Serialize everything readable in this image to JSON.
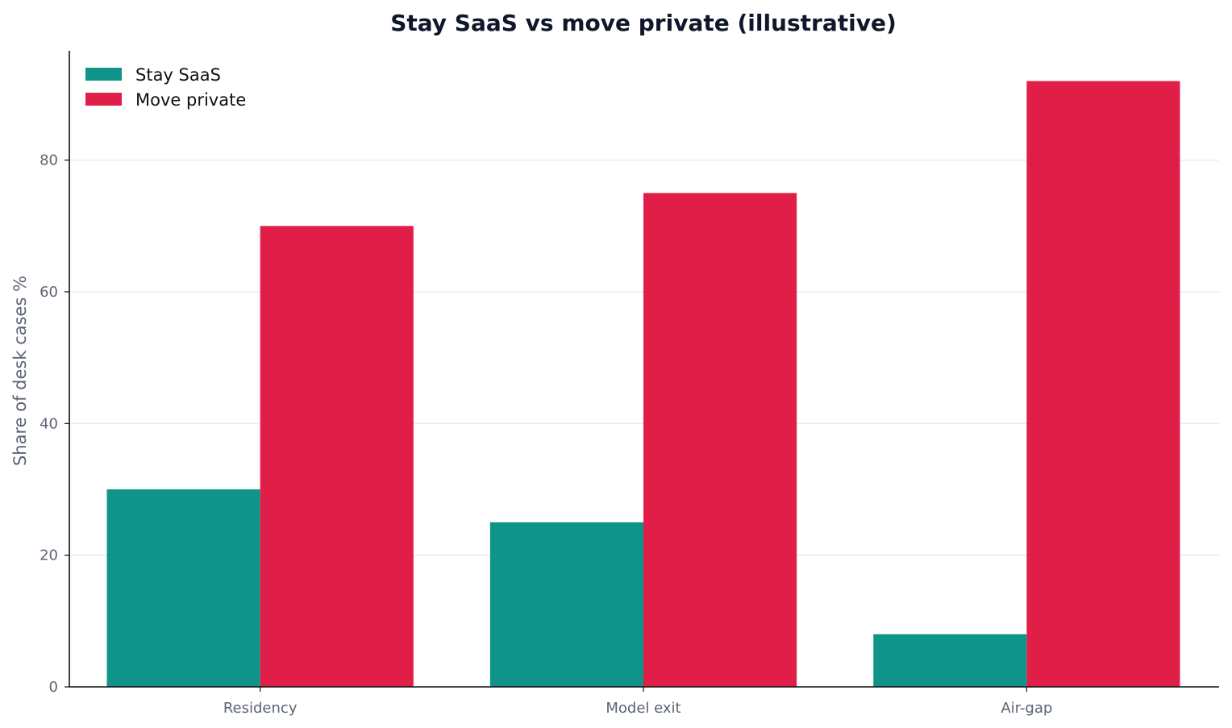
{
  "chart_data": {
    "type": "bar",
    "title": "Stay SaaS vs move private (illustrative)",
    "xlabel": "",
    "ylabel": "Share of desk cases %",
    "categories": [
      "Residency",
      "Model exit",
      "Air-gap"
    ],
    "series": [
      {
        "name": "Stay SaaS",
        "color": "#0e9488",
        "values": [
          30,
          25,
          8
        ]
      },
      {
        "name": "Move private",
        "color": "#e11e48",
        "values": [
          70,
          75,
          92
        ]
      }
    ],
    "ylim": [
      0,
      96.6
    ],
    "yticks": [
      0,
      20,
      40,
      60,
      80
    ],
    "grid": "horizontal",
    "legend_position": "top-left"
  }
}
